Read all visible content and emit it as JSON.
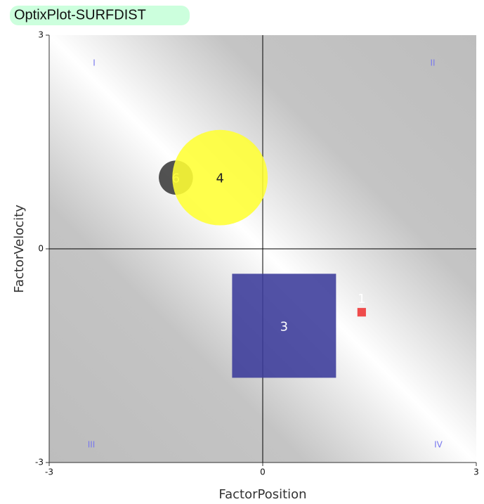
{
  "chart_data": {
    "type": "bubble",
    "title": "OptixPlot-SURFDIST",
    "x_label": "FactorPosition",
    "y_label": "FactorVelocity",
    "xlim": [
      -3,
      3
    ],
    "ylim": [
      -3,
      3
    ],
    "xticks": [
      -3,
      0,
      3
    ],
    "yticks": [
      -3,
      0,
      3
    ],
    "quadrants": [
      "I",
      "II",
      "III",
      "IV"
    ],
    "points": [
      {
        "label": "6",
        "x": -1.22,
        "y": 1.0,
        "size": 0.24,
        "color": "#3a3a3a",
        "shape": "circle",
        "label_color": "#f0f0a0"
      },
      {
        "label": "4",
        "x": -0.6,
        "y": 1.0,
        "size": 0.67,
        "color": "#ffff33",
        "shape": "circle",
        "label_color": "#222222"
      },
      {
        "label": "3",
        "x": 0.3,
        "y": -1.08,
        "size": 0.73,
        "color": "#3a3a9a",
        "shape": "square",
        "label_color": "#ffffff"
      },
      {
        "label": "1",
        "x": 1.39,
        "y": -0.89,
        "size": 0.06,
        "color": "#ee3333",
        "shape": "square",
        "label_color": "#ffffff"
      }
    ]
  }
}
